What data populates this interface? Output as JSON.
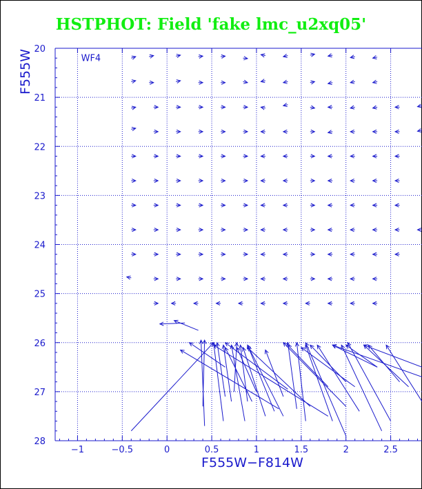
{
  "title": "HSTPHOT: Field 'fake lmc_u2xq05'",
  "chart_data": {
    "type": "vector-field",
    "title": "HSTPHOT: Field 'fake lmc_u2xq05'",
    "xlabel": "F555W−F814W",
    "ylabel": "F555W",
    "panel_label": "WF4",
    "xlim": [
      -1.25,
      2.85
    ],
    "ylim": [
      28,
      20
    ],
    "y_inverted": true,
    "xticks": [
      -1,
      -0.5,
      0,
      0.5,
      1,
      1.5,
      2,
      2.5
    ],
    "xtick_labels": [
      "−1",
      "−0.5",
      "0",
      "0.5",
      "1",
      "1.5",
      "2",
      "2.5"
    ],
    "yticks": [
      20,
      21,
      22,
      23,
      24,
      25,
      26,
      27,
      28
    ],
    "ytick_labels": [
      "20",
      "21",
      "22",
      "23",
      "24",
      "25",
      "26",
      "27",
      "28"
    ],
    "grid": true,
    "colors": {
      "axes": "#1a1acc",
      "title": "#11ee11",
      "grid": "#1a1acc"
    },
    "notes": "Each vector is [x_start, y_start, x_end, y_end] in data units; the arrowhead sits at the end point.",
    "vectors": [
      [
        -0.4,
        20.2,
        -0.35,
        20.17
      ],
      [
        -0.2,
        20.17,
        -0.15,
        20.15
      ],
      [
        0.1,
        20.16,
        0.15,
        20.14
      ],
      [
        0.35,
        20.17,
        0.4,
        20.16
      ],
      [
        0.6,
        20.17,
        0.65,
        20.16
      ],
      [
        0.85,
        20.2,
        0.9,
        20.21
      ],
      [
        1.1,
        20.15,
        1.05,
        20.13
      ],
      [
        1.35,
        20.15,
        1.3,
        20.17
      ],
      [
        1.6,
        20.14,
        1.65,
        20.12
      ],
      [
        1.85,
        20.14,
        1.8,
        20.16
      ],
      [
        2.1,
        20.17,
        2.05,
        20.19
      ],
      [
        2.35,
        20.18,
        2.3,
        20.2
      ],
      [
        -0.4,
        20.68,
        -0.35,
        20.66
      ],
      [
        -0.2,
        20.7,
        -0.15,
        20.7
      ],
      [
        0.1,
        20.68,
        0.15,
        20.66
      ],
      [
        0.35,
        20.7,
        0.4,
        20.7
      ],
      [
        0.6,
        20.7,
        0.65,
        20.7
      ],
      [
        0.85,
        20.68,
        0.9,
        20.7
      ],
      [
        1.1,
        20.66,
        1.05,
        20.68
      ],
      [
        1.35,
        20.68,
        1.3,
        20.7
      ],
      [
        1.6,
        20.7,
        1.65,
        20.68
      ],
      [
        1.85,
        20.7,
        1.8,
        20.72
      ],
      [
        2.1,
        20.68,
        2.05,
        20.7
      ],
      [
        2.35,
        20.68,
        2.3,
        20.7
      ],
      [
        -0.4,
        21.22,
        -0.35,
        21.2
      ],
      [
        -0.15,
        21.2,
        -0.1,
        21.2
      ],
      [
        0.1,
        21.2,
        0.15,
        21.2
      ],
      [
        0.35,
        21.2,
        0.4,
        21.2
      ],
      [
        0.6,
        21.2,
        0.65,
        21.2
      ],
      [
        0.85,
        21.2,
        0.9,
        21.2
      ],
      [
        1.1,
        21.22,
        1.05,
        21.2
      ],
      [
        1.35,
        21.15,
        1.3,
        21.17
      ],
      [
        1.6,
        21.2,
        1.65,
        21.22
      ],
      [
        1.85,
        21.2,
        1.8,
        21.2
      ],
      [
        2.1,
        21.2,
        2.05,
        21.22
      ],
      [
        2.35,
        21.2,
        2.3,
        21.22
      ],
      [
        2.6,
        21.2,
        2.55,
        21.2
      ],
      [
        2.85,
        21.17,
        2.8,
        21.19
      ],
      [
        -0.4,
        21.65,
        -0.35,
        21.63
      ],
      [
        -0.15,
        21.7,
        -0.1,
        21.7
      ],
      [
        0.1,
        21.7,
        0.15,
        21.7
      ],
      [
        0.35,
        21.7,
        0.4,
        21.7
      ],
      [
        0.6,
        21.7,
        0.65,
        21.7
      ],
      [
        0.85,
        21.7,
        0.9,
        21.7
      ],
      [
        1.1,
        21.7,
        1.05,
        21.7
      ],
      [
        1.35,
        21.7,
        1.3,
        21.7
      ],
      [
        1.6,
        21.7,
        1.65,
        21.7
      ],
      [
        1.85,
        21.7,
        1.8,
        21.72
      ],
      [
        2.1,
        21.7,
        2.05,
        21.7
      ],
      [
        2.35,
        21.7,
        2.3,
        21.7
      ],
      [
        2.6,
        21.7,
        2.55,
        21.7
      ],
      [
        2.85,
        21.67,
        2.8,
        21.69
      ],
      [
        -0.4,
        22.2,
        -0.35,
        22.2
      ],
      [
        -0.15,
        22.2,
        -0.1,
        22.2
      ],
      [
        0.1,
        22.2,
        0.15,
        22.2
      ],
      [
        0.35,
        22.2,
        0.4,
        22.2
      ],
      [
        0.6,
        22.2,
        0.65,
        22.2
      ],
      [
        0.85,
        22.2,
        0.9,
        22.2
      ],
      [
        1.1,
        22.2,
        1.05,
        22.2
      ],
      [
        1.35,
        22.2,
        1.3,
        22.2
      ],
      [
        1.6,
        22.2,
        1.65,
        22.2
      ],
      [
        1.85,
        22.2,
        1.8,
        22.2
      ],
      [
        2.1,
        22.2,
        2.05,
        22.2
      ],
      [
        2.35,
        22.2,
        2.3,
        22.2
      ],
      [
        2.6,
        22.2,
        2.55,
        22.2
      ],
      [
        -0.4,
        22.7,
        -0.35,
        22.7
      ],
      [
        -0.15,
        22.7,
        -0.1,
        22.7
      ],
      [
        0.1,
        22.7,
        0.15,
        22.7
      ],
      [
        0.35,
        22.7,
        0.4,
        22.7
      ],
      [
        0.6,
        22.7,
        0.65,
        22.7
      ],
      [
        0.85,
        22.7,
        0.9,
        22.7
      ],
      [
        1.1,
        22.7,
        1.05,
        22.7
      ],
      [
        1.35,
        22.7,
        1.3,
        22.7
      ],
      [
        1.6,
        22.7,
        1.65,
        22.7
      ],
      [
        1.85,
        22.7,
        1.8,
        22.7
      ],
      [
        2.1,
        22.7,
        2.05,
        22.7
      ],
      [
        2.35,
        22.7,
        2.3,
        22.7
      ],
      [
        2.6,
        22.7,
        2.55,
        22.7
      ],
      [
        -0.4,
        23.2,
        -0.35,
        23.2
      ],
      [
        -0.15,
        23.2,
        -0.1,
        23.2
      ],
      [
        0.1,
        23.2,
        0.15,
        23.2
      ],
      [
        0.35,
        23.2,
        0.4,
        23.2
      ],
      [
        0.6,
        23.2,
        0.65,
        23.2
      ],
      [
        0.85,
        23.2,
        0.9,
        23.2
      ],
      [
        1.1,
        23.2,
        1.05,
        23.2
      ],
      [
        1.35,
        23.2,
        1.3,
        23.2
      ],
      [
        1.6,
        23.2,
        1.65,
        23.2
      ],
      [
        1.85,
        23.2,
        1.8,
        23.2
      ],
      [
        2.1,
        23.2,
        2.05,
        23.2
      ],
      [
        2.35,
        23.2,
        2.3,
        23.2
      ],
      [
        2.6,
        23.2,
        2.55,
        23.2
      ],
      [
        -0.4,
        23.7,
        -0.35,
        23.7
      ],
      [
        -0.15,
        23.7,
        -0.1,
        23.7
      ],
      [
        0.1,
        23.7,
        0.15,
        23.7
      ],
      [
        0.35,
        23.7,
        0.4,
        23.7
      ],
      [
        0.6,
        23.7,
        0.65,
        23.7
      ],
      [
        0.85,
        23.7,
        0.9,
        23.7
      ],
      [
        1.1,
        23.7,
        1.05,
        23.7
      ],
      [
        1.35,
        23.7,
        1.3,
        23.7
      ],
      [
        1.6,
        23.7,
        1.65,
        23.7
      ],
      [
        1.85,
        23.7,
        1.8,
        23.7
      ],
      [
        2.1,
        23.7,
        2.05,
        23.7
      ],
      [
        2.35,
        23.7,
        2.3,
        23.7
      ],
      [
        2.6,
        23.7,
        2.55,
        23.7
      ],
      [
        2.85,
        23.7,
        2.8,
        23.7
      ],
      [
        -0.4,
        24.2,
        -0.35,
        24.2
      ],
      [
        -0.15,
        24.2,
        -0.1,
        24.2
      ],
      [
        0.1,
        24.2,
        0.15,
        24.2
      ],
      [
        0.35,
        24.2,
        0.4,
        24.2
      ],
      [
        0.6,
        24.2,
        0.65,
        24.2
      ],
      [
        0.85,
        24.2,
        0.9,
        24.2
      ],
      [
        1.1,
        24.2,
        1.05,
        24.2
      ],
      [
        1.35,
        24.2,
        1.3,
        24.2
      ],
      [
        1.6,
        24.2,
        1.65,
        24.2
      ],
      [
        1.85,
        24.2,
        1.8,
        24.2
      ],
      [
        2.1,
        24.2,
        2.05,
        24.2
      ],
      [
        2.35,
        24.2,
        2.3,
        24.2
      ],
      [
        2.6,
        24.2,
        2.55,
        24.2
      ],
      [
        -0.4,
        24.68,
        -0.45,
        24.66
      ],
      [
        -0.15,
        24.7,
        -0.1,
        24.7
      ],
      [
        0.1,
        24.7,
        0.15,
        24.7
      ],
      [
        0.35,
        24.7,
        0.4,
        24.7
      ],
      [
        0.6,
        24.7,
        0.65,
        24.7
      ],
      [
        0.85,
        24.7,
        0.9,
        24.7
      ],
      [
        1.1,
        24.7,
        1.05,
        24.7
      ],
      [
        1.35,
        24.7,
        1.3,
        24.7
      ],
      [
        1.6,
        24.7,
        1.65,
        24.7
      ],
      [
        1.85,
        24.7,
        1.8,
        24.7
      ],
      [
        2.1,
        24.7,
        2.05,
        24.7
      ],
      [
        2.35,
        24.7,
        2.3,
        24.7
      ],
      [
        -0.15,
        25.2,
        -0.1,
        25.2
      ],
      [
        0.1,
        25.2,
        0.05,
        25.2
      ],
      [
        0.35,
        25.2,
        0.3,
        25.2
      ],
      [
        0.6,
        25.2,
        0.55,
        25.2
      ],
      [
        0.85,
        25.2,
        0.8,
        25.2
      ],
      [
        1.1,
        25.2,
        1.05,
        25.2
      ],
      [
        1.35,
        25.2,
        1.3,
        25.2
      ],
      [
        1.6,
        25.2,
        1.55,
        25.2
      ],
      [
        1.85,
        25.2,
        1.8,
        25.2
      ],
      [
        2.1,
        25.2,
        2.05,
        25.2
      ],
      [
        2.35,
        25.2,
        2.3,
        25.2
      ],
      [
        0.2,
        25.6,
        -0.08,
        25.62
      ],
      [
        0.35,
        25.75,
        0.08,
        25.55
      ],
      [
        -0.4,
        27.8,
        0.52,
        26.0
      ],
      [
        0.42,
        27.7,
        0.38,
        25.95
      ],
      [
        0.4,
        27.3,
        0.42,
        25.95
      ],
      [
        0.63,
        27.6,
        0.52,
        26.0
      ],
      [
        0.65,
        27.1,
        0.56,
        26.0
      ],
      [
        0.72,
        27.2,
        0.63,
        26.05
      ],
      [
        0.87,
        27.6,
        0.72,
        26.05
      ],
      [
        0.75,
        27.0,
        0.78,
        26.0
      ],
      [
        0.9,
        27.2,
        0.82,
        26.05
      ],
      [
        1.1,
        27.5,
        0.85,
        26.1
      ],
      [
        1.3,
        27.5,
        0.9,
        26.05
      ],
      [
        1.45,
        27.35,
        1.35,
        26.0
      ],
      [
        1.55,
        27.6,
        1.45,
        26.0
      ],
      [
        1.85,
        27.6,
        1.55,
        26.05
      ],
      [
        2.0,
        27.9,
        1.55,
        26.0
      ],
      [
        2.15,
        27.4,
        1.68,
        26.05
      ],
      [
        2.4,
        27.8,
        1.95,
        26.05
      ],
      [
        2.5,
        27.6,
        2.02,
        26.0
      ],
      [
        2.85,
        27.2,
        2.45,
        26.05
      ],
      [
        2.85,
        26.7,
        1.85,
        26.05
      ],
      [
        2.0,
        27.3,
        1.3,
        26.0
      ],
      [
        1.6,
        27.3,
        0.9,
        26.1
      ],
      [
        1.2,
        27.4,
        0.9,
        26.05
      ],
      [
        1.8,
        26.9,
        1.35,
        26.05
      ],
      [
        2.7,
        26.9,
        2.2,
        26.05
      ],
      [
        2.85,
        26.5,
        2.2,
        26.05
      ],
      [
        2.35,
        26.5,
        1.85,
        26.05
      ],
      [
        2.0,
        26.8,
        1.6,
        26.05
      ],
      [
        1.35,
        26.95,
        0.65,
        26.0
      ],
      [
        1.0,
        27.0,
        0.78,
        26.1
      ],
      [
        1.8,
        27.5,
        0.52,
        26.05
      ],
      [
        0.65,
        26.5,
        0.25,
        26.0
      ],
      [
        0.95,
        27.2,
        0.65,
        26.1
      ],
      [
        1.3,
        27.1,
        1.1,
        26.15
      ],
      [
        2.6,
        26.8,
        2.25,
        26.05
      ],
      [
        1.25,
        27.35,
        0.15,
        26.15
      ],
      [
        2.1,
        26.9,
        1.5,
        26.1
      ],
      [
        2.35,
        26.5,
        2.0,
        26.05
      ]
    ]
  }
}
